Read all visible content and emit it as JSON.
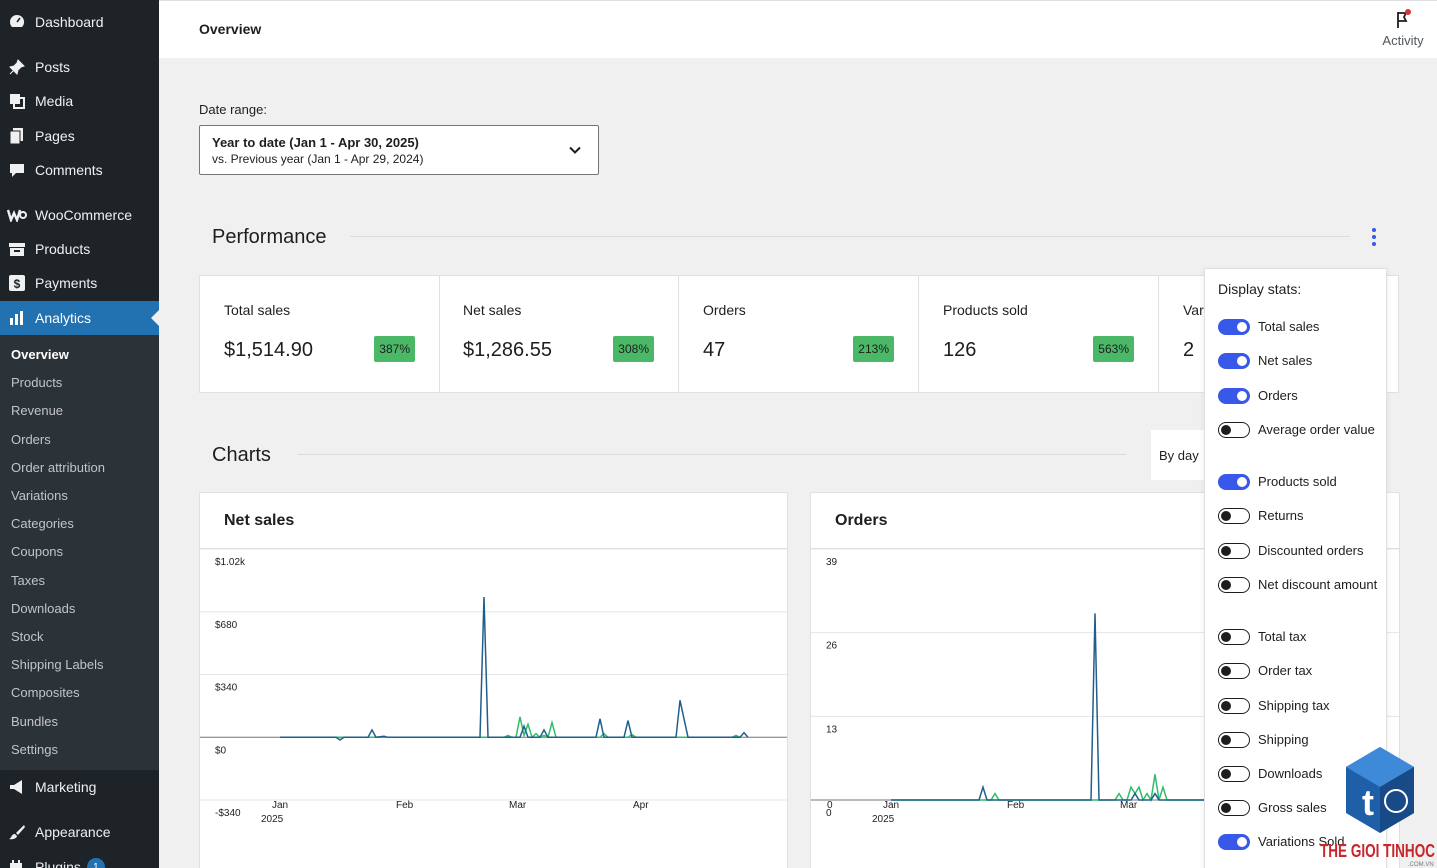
{
  "sidebar": {
    "items": [
      {
        "label": "Dashboard",
        "icon": "dashboard-icon"
      },
      {
        "label": "Posts",
        "icon": "pin-icon"
      },
      {
        "label": "Media",
        "icon": "media-icon"
      },
      {
        "label": "Pages",
        "icon": "pages-icon"
      },
      {
        "label": "Comments",
        "icon": "comment-icon"
      },
      {
        "label": "WooCommerce",
        "icon": "woo-icon"
      },
      {
        "label": "Products",
        "icon": "archive-icon"
      },
      {
        "label": "Payments",
        "icon": "dollar-icon"
      },
      {
        "label": "Analytics",
        "icon": "bar-chart-icon"
      },
      {
        "label": "Marketing",
        "icon": "megaphone-icon"
      },
      {
        "label": "Appearance",
        "icon": "brush-icon"
      },
      {
        "label": "Plugins",
        "icon": "plug-icon",
        "badge": "1"
      }
    ],
    "submenu": [
      "Overview",
      "Products",
      "Revenue",
      "Orders",
      "Order attribution",
      "Variations",
      "Categories",
      "Coupons",
      "Taxes",
      "Downloads",
      "Stock",
      "Shipping Labels",
      "Composites",
      "Bundles",
      "Settings"
    ]
  },
  "header": {
    "title": "Overview",
    "activity_label": "Activity"
  },
  "date_range": {
    "label": "Date range:",
    "primary": "Year to date (Jan 1 - Apr 30, 2025)",
    "secondary": "vs. Previous year (Jan 1 - Apr 29, 2024)"
  },
  "performance": {
    "title": "Performance",
    "stats": [
      {
        "label": "Total sales",
        "value": "$1,514.90",
        "delta": "387%"
      },
      {
        "label": "Net sales",
        "value": "$1,286.55",
        "delta": "308%"
      },
      {
        "label": "Orders",
        "value": "47",
        "delta": "213%"
      },
      {
        "label": "Products sold",
        "value": "126",
        "delta": "563%"
      },
      {
        "label": "Var",
        "value": "2",
        "delta": ""
      }
    ]
  },
  "charts": {
    "title": "Charts",
    "interval": "By day"
  },
  "popover": {
    "title": "Display stats:",
    "toggles": [
      {
        "label": "Total sales",
        "on": true
      },
      {
        "label": "Net sales",
        "on": true
      },
      {
        "label": "Orders",
        "on": true
      },
      {
        "label": "Average order value",
        "on": false
      },
      {
        "label": "Products sold",
        "on": true
      },
      {
        "label": "Returns",
        "on": false
      },
      {
        "label": "Discounted orders",
        "on": false
      },
      {
        "label": "Net discount amount",
        "on": false
      },
      {
        "label": "Total tax",
        "on": false
      },
      {
        "label": "Order tax",
        "on": false
      },
      {
        "label": "Shipping tax",
        "on": false
      },
      {
        "label": "Shipping",
        "on": false
      },
      {
        "label": "Downloads",
        "on": false
      },
      {
        "label": "Gross sales",
        "on": false
      },
      {
        "label": "Variations Sold",
        "on": true
      }
    ]
  },
  "colors": {
    "current": "#1e5f8c",
    "previous": "#2ebd6b",
    "accent": "#3858e9",
    "admin_blue": "#2271b1"
  },
  "logo_text": "THE GIOI TINHOC",
  "chart_data": [
    {
      "type": "line",
      "title": "Net sales",
      "ytick_labels": [
        "$1.02k",
        "$680",
        "$340",
        "$0",
        "-$340"
      ],
      "ylim": [
        -340,
        1020
      ],
      "xtick_labels": [
        "Jan",
        "Feb",
        "Mar",
        "Apr"
      ],
      "xtick_sub": "2025",
      "x_days": 120,
      "series": [
        {
          "points": [
            [
              0,
              0
            ],
            [
              14,
              0
            ],
            [
              15,
              -15
            ],
            [
              16,
              0
            ],
            [
              22,
              0
            ],
            [
              23,
              40
            ],
            [
              24,
              0
            ],
            [
              26,
              5
            ],
            [
              27,
              0
            ],
            [
              50,
              0
            ],
            [
              51,
              760
            ],
            [
              52,
              0
            ],
            [
              60,
              0
            ],
            [
              61,
              60
            ],
            [
              62,
              0
            ],
            [
              65,
              0
            ],
            [
              66,
              40
            ],
            [
              67,
              0
            ],
            [
              79,
              0
            ],
            [
              80,
              100
            ],
            [
              81,
              0
            ],
            [
              86,
              0
            ],
            [
              87,
              90
            ],
            [
              88,
              0
            ],
            [
              99,
              0
            ],
            [
              100,
              200
            ],
            [
              102,
              0
            ],
            [
              115,
              0
            ],
            [
              116,
              25
            ],
            [
              117,
              0
            ]
          ]
        },
        {
          "points": [
            [
              0,
              0
            ],
            [
              56,
              0
            ],
            [
              57,
              10
            ],
            [
              58,
              0
            ],
            [
              59,
              0
            ],
            [
              60,
              110
            ],
            [
              61,
              10
            ],
            [
              62,
              70
            ],
            [
              63,
              0
            ],
            [
              64,
              20
            ],
            [
              65,
              0
            ],
            [
              66,
              10
            ],
            [
              67,
              0
            ],
            [
              68,
              80
            ],
            [
              69,
              0
            ],
            [
              80,
              0
            ],
            [
              81,
              20
            ],
            [
              82,
              0
            ],
            [
              87,
              0
            ],
            [
              88,
              15
            ],
            [
              89,
              0
            ],
            [
              113,
              0
            ],
            [
              114,
              10
            ],
            [
              115,
              0
            ]
          ]
        }
      ]
    },
    {
      "type": "line",
      "title": "Orders",
      "ytick_labels": [
        "39",
        "26",
        "13",
        "0"
      ],
      "ylim": [
        0,
        39
      ],
      "xtick_labels": [
        "Jan",
        "Feb",
        "Mar"
      ],
      "xtick_sub": "2025",
      "x_days": 120,
      "series": [
        {
          "points": [
            [
              0,
              0
            ],
            [
              22,
              0
            ],
            [
              23,
              2
            ],
            [
              24,
              0
            ],
            [
              50,
              0
            ],
            [
              51,
              29
            ],
            [
              52,
              0
            ],
            [
              60,
              0
            ],
            [
              61,
              1
            ],
            [
              62,
              0
            ],
            [
              65,
              0
            ],
            [
              66,
              1
            ],
            [
              67,
              0
            ],
            [
              80,
              0
            ]
          ]
        },
        {
          "points": [
            [
              0,
              0
            ],
            [
              25,
              0
            ],
            [
              26,
              1
            ],
            [
              27,
              0
            ],
            [
              56,
              0
            ],
            [
              57,
              1
            ],
            [
              58,
              0
            ],
            [
              59,
              0
            ],
            [
              60,
              2
            ],
            [
              61,
              1
            ],
            [
              62,
              2
            ],
            [
              63,
              0
            ],
            [
              64,
              1
            ],
            [
              65,
              0
            ],
            [
              66,
              4
            ],
            [
              67,
              0
            ],
            [
              68,
              2
            ],
            [
              69,
              0
            ],
            [
              80,
              0
            ]
          ]
        }
      ]
    }
  ]
}
